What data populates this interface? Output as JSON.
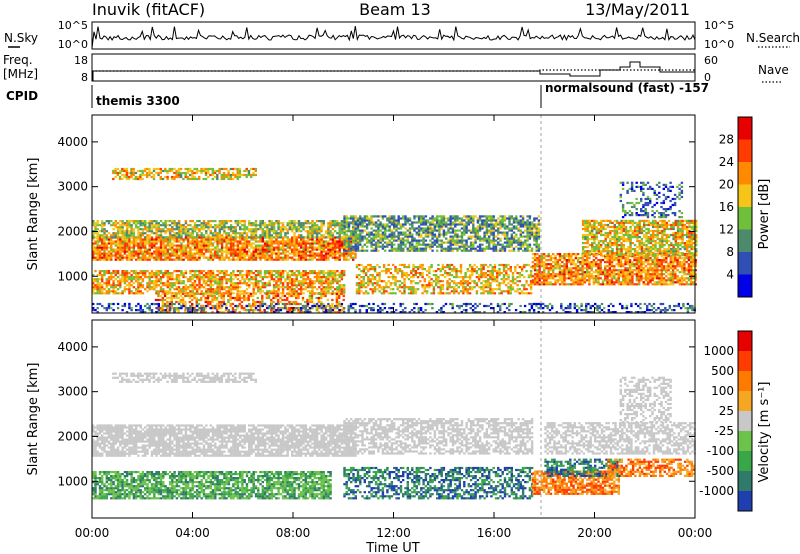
{
  "header": {
    "radar": "Inuvik (fitACF)",
    "beam": "Beam 13",
    "date": "13/May/2011"
  },
  "params": {
    "nsky_label": "N.Sky",
    "nsky_ticks": [
      "10^5",
      "10^0"
    ],
    "nsearch_label": "N.Search",
    "freq_label": "Freq.",
    "freq_unit": "[MHz]",
    "freq_ticks": [
      "18",
      "8"
    ],
    "nave_ticks": [
      "60",
      "0"
    ],
    "nave_label": "Nave",
    "cpid_label": "CPID",
    "cpid_segments": [
      {
        "label": "themis 3300",
        "start_hour": 0
      },
      {
        "label": "normalsound (fast) -157",
        "start_hour": 18
      }
    ]
  },
  "chart_data": [
    {
      "type": "heatmap",
      "panel": "power",
      "ylabel": "Slant Range [km]",
      "ylim": [
        180,
        4600
      ],
      "yticks": [
        "4000",
        "3000",
        "2000",
        "1000"
      ],
      "colorbar_label": "Power [dB]",
      "colorbar_ticks": [
        "28",
        "24",
        "20",
        "16",
        "12",
        "8",
        "4"
      ],
      "colorbar_colors": [
        "#0000e6",
        "#2f4fb5",
        "#4c8a6b",
        "#6fbf3a",
        "#f5c518",
        "#ff8a00",
        "#ff3b00",
        "#e60000"
      ],
      "regions": [
        {
          "t0": 0.0,
          "t1": 10.5,
          "r0": 1350,
          "r1": 1850,
          "level": 22,
          "density": 0.85
        },
        {
          "t0": 0.0,
          "t1": 10.5,
          "r0": 1850,
          "r1": 2250,
          "level": 15,
          "density": 0.7
        },
        {
          "t0": 0.0,
          "t1": 10.0,
          "r0": 600,
          "r1": 1100,
          "level": 20,
          "density": 0.7
        },
        {
          "t0": 2.5,
          "t1": 10.0,
          "r0": 180,
          "r1": 600,
          "level": 22,
          "density": 0.55
        },
        {
          "t0": 0.8,
          "t1": 6.5,
          "r0": 3150,
          "r1": 3400,
          "level": 18,
          "density": 0.6
        },
        {
          "t0": 10.5,
          "t1": 17.5,
          "r0": 600,
          "r1": 1250,
          "level": 19,
          "density": 0.55
        },
        {
          "t0": 10.0,
          "t1": 17.8,
          "r0": 1550,
          "r1": 2350,
          "level": 11,
          "density": 0.7
        },
        {
          "t0": 17.5,
          "t1": 24.0,
          "r0": 800,
          "r1": 1500,
          "level": 22,
          "density": 0.8
        },
        {
          "t0": 19.5,
          "t1": 24.0,
          "r0": 1450,
          "r1": 2250,
          "level": 18,
          "density": 0.75
        },
        {
          "t0": 21.0,
          "t1": 23.5,
          "r0": 2300,
          "r1": 3100,
          "level": 8,
          "density": 0.3
        },
        {
          "t0": 0.0,
          "t1": 24.0,
          "r0": 180,
          "r1": 380,
          "level": 6,
          "density": 0.35
        }
      ]
    },
    {
      "type": "heatmap",
      "panel": "velocity",
      "ylabel": "Slant Range [km]",
      "xlabel": "Time UT",
      "ylim": [
        180,
        4600
      ],
      "xlim": [
        0,
        24
      ],
      "xticks": [
        "00:00",
        "04:00",
        "08:00",
        "12:00",
        "16:00",
        "20:00",
        "00:00"
      ],
      "yticks": [
        "4000",
        "3000",
        "2000",
        "1000"
      ],
      "colorbar_label": "Velocity [m s⁻¹]",
      "colorbar_ticks": [
        "1000",
        "500",
        "100",
        "25",
        "-25",
        "-100",
        "-500",
        "-1000"
      ],
      "colorbar_colors": [
        "#1f3fb0",
        "#2f7a6a",
        "#3aa64a",
        "#6cc24a",
        "#c8c8c8",
        "#f5a623",
        "#ff7a00",
        "#ff3b00",
        "#e60000"
      ],
      "regions": [
        {
          "t0": 0.0,
          "t1": 10.5,
          "r0": 1550,
          "r1": 2250,
          "kind": "ground",
          "density": 0.8
        },
        {
          "t0": 0.0,
          "t1": 9.5,
          "r0": 600,
          "r1": 1200,
          "kind": "pos_small",
          "density": 0.75
        },
        {
          "t0": 0.8,
          "t1": 6.5,
          "r0": 3200,
          "r1": 3400,
          "kind": "ground",
          "density": 0.6
        },
        {
          "t0": 10.0,
          "t1": 17.5,
          "r0": 1600,
          "r1": 2400,
          "kind": "ground",
          "density": 0.6
        },
        {
          "t0": 10.0,
          "t1": 17.5,
          "r0": 600,
          "r1": 1300,
          "kind": "pos_large",
          "density": 0.55
        },
        {
          "t0": 17.5,
          "t1": 21.0,
          "r0": 700,
          "r1": 1200,
          "kind": "neg",
          "density": 0.75
        },
        {
          "t0": 18.0,
          "t1": 21.0,
          "r0": 1100,
          "r1": 1500,
          "kind": "pos_large",
          "density": 0.6
        },
        {
          "t0": 20.5,
          "t1": 24.0,
          "r0": 1100,
          "r1": 1500,
          "kind": "neg",
          "density": 0.6
        },
        {
          "t0": 18.0,
          "t1": 24.0,
          "r0": 1600,
          "r1": 2300,
          "kind": "ground",
          "density": 0.6
        },
        {
          "t0": 21.0,
          "t1": 23.0,
          "r0": 2300,
          "r1": 3300,
          "kind": "ground",
          "density": 0.45
        }
      ]
    }
  ]
}
